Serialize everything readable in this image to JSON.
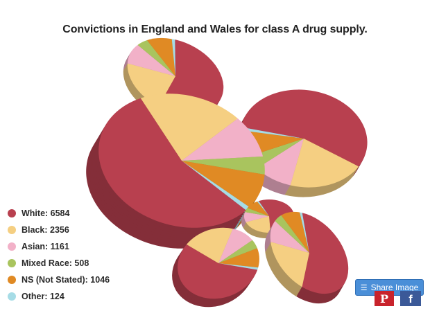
{
  "chart_data": {
    "type": "pie",
    "title": "Convictions in England and Wales for class A drug supply.",
    "categories": [
      "White",
      "Black",
      "Asian",
      "Mixed Race",
      "NS (Not Stated)",
      "Other"
    ],
    "values": [
      6584,
      2356,
      1161,
      508,
      1046,
      124
    ],
    "legend": {
      "position": "bottom-left",
      "items": [
        {
          "label": "White: 6584",
          "color": "#b8404f"
        },
        {
          "label": "Black: 2356",
          "color": "#f5cf82"
        },
        {
          "label": "Asian: 1161",
          "color": "#f2b1c8"
        },
        {
          "label": "Mixed Race: 508",
          "color": "#a9c45e"
        },
        {
          "label": "NS (Not Stated): 1046",
          "color": "#e08a24"
        },
        {
          "label": "Other: 124",
          "color": "#a6dce6"
        }
      ]
    }
  },
  "colors": {
    "white": "#b8404f",
    "black": "#f5cf82",
    "asian": "#f2b1c8",
    "mixed": "#a9c45e",
    "ns": "#e08a24",
    "other": "#a6dce6"
  },
  "share": {
    "label": "Share Image",
    "icon": "stack-icon"
  },
  "social": {
    "pinterest_glyph": "P",
    "pinterest_icon": "pinterest-icon",
    "facebook_glyph": "f",
    "facebook_icon": "facebook-icon"
  }
}
